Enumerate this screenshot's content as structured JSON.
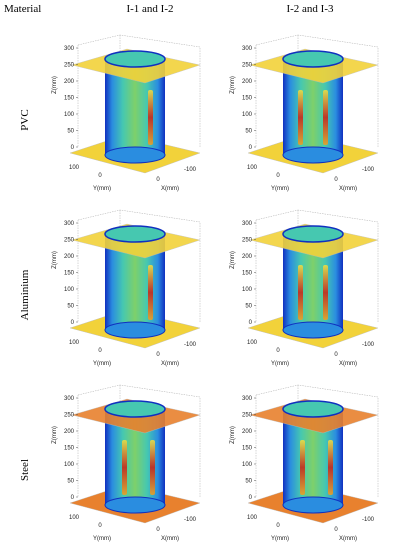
{
  "header": {
    "material": "Material",
    "left": "I-1 and I-2",
    "right": "I-2 and I-3"
  },
  "rows": [
    {
      "material": "PVC",
      "panels": [
        {
          "z_label": "Z(mm)",
          "x_label": "X(mm)",
          "y_label": "Y(mm)",
          "z_ticks": [
            0,
            50,
            100,
            150,
            200,
            250,
            300
          ],
          "y_ticks": [
            100,
            0
          ],
          "x_ticks": [
            0,
            -100
          ]
        },
        {
          "z_label": "Z(mm)",
          "x_label": "X(mm)",
          "y_label": "Y(mm)",
          "z_ticks": [
            0,
            50,
            100,
            150,
            200,
            250,
            300
          ],
          "y_ticks": [
            100,
            0
          ],
          "x_ticks": [
            0,
            -100
          ]
        }
      ]
    },
    {
      "material": "Aluminium",
      "panels": [
        {
          "z_label": "Z(mm)",
          "x_label": "X(mm)",
          "y_label": "Y(mm)",
          "z_ticks": [
            0,
            50,
            100,
            150,
            200,
            250,
            300
          ],
          "y_ticks": [
            100,
            0
          ],
          "x_ticks": [
            0,
            -100
          ]
        },
        {
          "z_label": "Z(mm)",
          "x_label": "X(mm)",
          "y_label": "Y(mm)",
          "z_ticks": [
            0,
            50,
            100,
            150,
            200,
            250,
            300
          ],
          "y_ticks": [
            100,
            0
          ],
          "x_ticks": [
            0,
            -100
          ]
        }
      ]
    },
    {
      "material": "Steel",
      "panels": [
        {
          "z_label": "Z(mm)",
          "x_label": "X(mm)",
          "y_label": "Y(mm)",
          "z_ticks": [
            0,
            50,
            100,
            150,
            200,
            250,
            300
          ],
          "y_ticks": [
            100,
            0
          ],
          "x_ticks": [
            0,
            -100
          ]
        },
        {
          "z_label": "Z(mm)",
          "x_label": "X(mm)",
          "y_label": "Y(mm)",
          "z_ticks": [
            0,
            50,
            100,
            150,
            200,
            250,
            300
          ],
          "y_ticks": [
            100,
            0
          ],
          "x_ticks": [
            0,
            -100
          ]
        }
      ]
    }
  ]
}
